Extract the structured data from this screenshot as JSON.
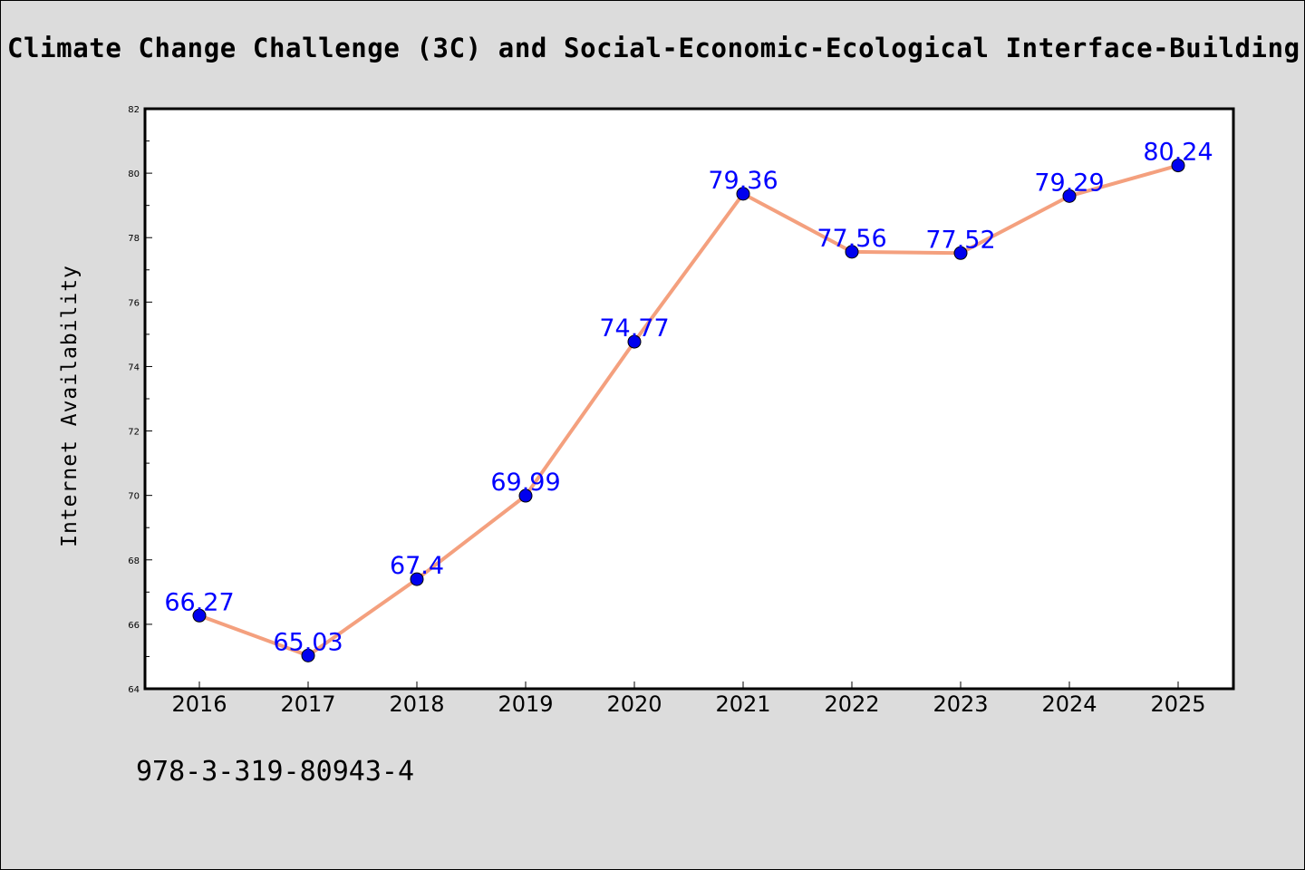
{
  "header": {
    "title": "Climate Change Challenge (3C) and Social-Economic-Ecological Interface-Building"
  },
  "footer": {
    "identifier": "978-3-319-80943-4"
  },
  "colors": {
    "background": "#dcdcdc",
    "plot_background": "#ffffff",
    "line": "#f4a07e",
    "marker": "#0000ee",
    "data_label": "#0000ff"
  },
  "chart_data": {
    "type": "line",
    "title": "Climate Change Challenge (3C) and Social-Economic-Ecological Interface-Building",
    "xlabel": "",
    "ylabel": "Internet Availability",
    "categories": [
      "2016",
      "2017",
      "2018",
      "2019",
      "2020",
      "2021",
      "2022",
      "2023",
      "2024",
      "2025"
    ],
    "series": [
      {
        "values": [
          66.27,
          65.03,
          67.4,
          69.99,
          74.77,
          79.36,
          77.56,
          77.52,
          79.29,
          80.24
        ],
        "labels": [
          "66.27",
          "65.03",
          "67.4",
          "69.99",
          "74.77",
          "79.36",
          "77.56",
          "77.52",
          "79.29",
          "80.24"
        ]
      }
    ],
    "ylim": [
      64,
      82
    ],
    "yticks": [
      "64",
      "66",
      "68",
      "70",
      "72",
      "74",
      "76",
      "78",
      "80",
      "82"
    ],
    "grid": false,
    "legend": "none"
  }
}
